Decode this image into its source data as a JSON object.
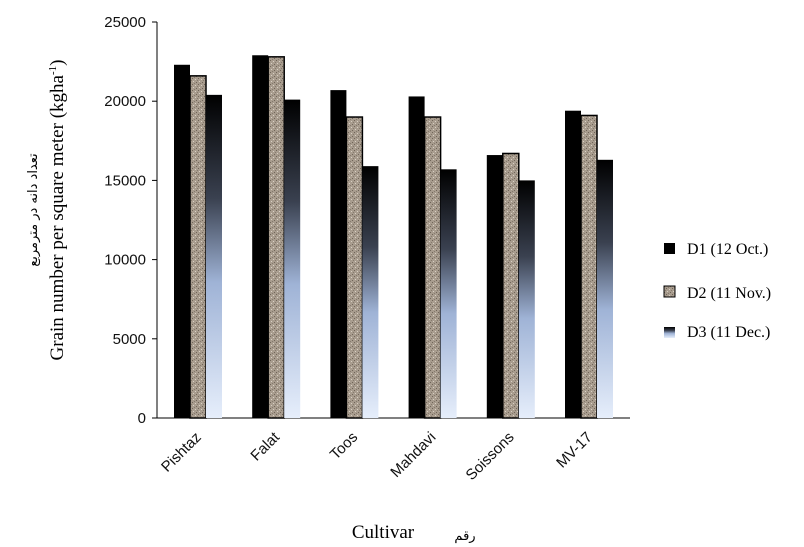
{
  "chart_data": {
    "type": "bar",
    "categories": [
      "Pishtaz",
      "Falat",
      "Toos",
      "Mahdavi",
      "Soissons",
      "MV-17"
    ],
    "series": [
      {
        "name": "D1 (12 Oct.)",
        "values": [
          22300,
          22900,
          20700,
          20300,
          16600,
          19400
        ]
      },
      {
        "name": "D2 (11 Nov.)",
        "values": [
          21600,
          22800,
          19000,
          19000,
          16700,
          19100
        ]
      },
      {
        "name": "D3 (11 Dec.)",
        "values": [
          20400,
          20100,
          15900,
          15700,
          15000,
          16300
        ]
      }
    ],
    "ylim": [
      0,
      25000
    ],
    "yticks": [
      "0",
      "5000",
      "10000",
      "15000",
      "20000",
      "25000"
    ],
    "ylabel": "Grain number per square meter (kgha",
    "ylabel_sup": "-1",
    "ylabel_close": ")",
    "ylabel_fa": "تعداد دانه در مترمربع",
    "xlabel": "Cultivar",
    "xlabel_fa": "رقم",
    "legend_position": "right",
    "colors": {
      "D1": "#000000",
      "D2": "#a89c8e",
      "D3_top": "#000000",
      "D3_bottom": "#e6eefb"
    }
  }
}
